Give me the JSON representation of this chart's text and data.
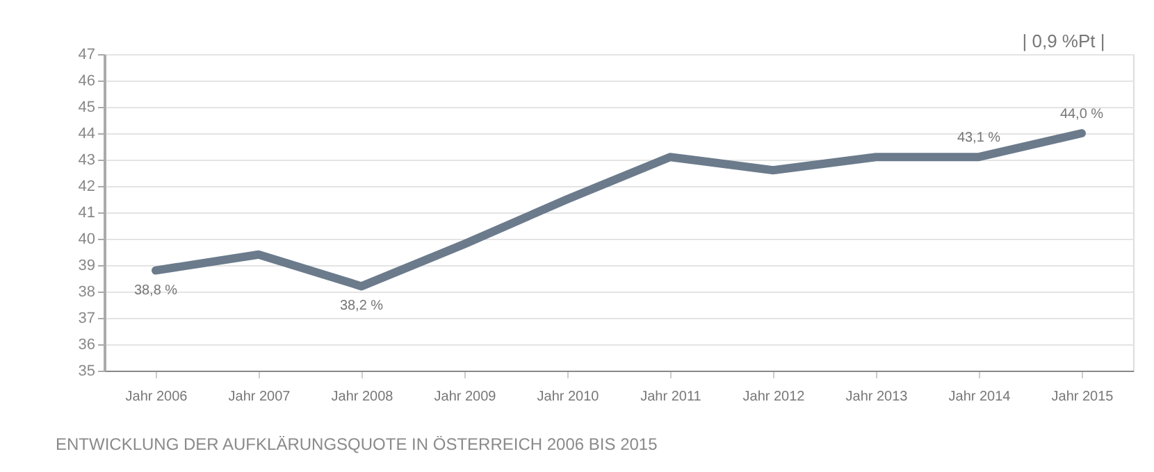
{
  "chart_data": {
    "type": "line",
    "categories": [
      "Jahr 2006",
      "Jahr 2007",
      "Jahr 2008",
      "Jahr 2009",
      "Jahr 2010",
      "Jahr 2011",
      "Jahr 2012",
      "Jahr 2013",
      "Jahr 2014",
      "Jahr 2015"
    ],
    "series": [
      {
        "color": "#6b7b8c",
        "values": [
          38.8,
          39.4,
          38.2,
          39.8,
          41.5,
          43.1,
          42.6,
          43.1,
          43.1,
          44.0
        ],
        "value_labels": [
          "38,8 %",
          null,
          "38,2 %",
          null,
          null,
          null,
          null,
          null,
          "43,1 %",
          "44,0 %"
        ]
      }
    ],
    "ylim": [
      35,
      47
    ],
    "yticks": [
      35,
      36,
      37,
      38,
      39,
      40,
      41,
      42,
      43,
      44,
      45,
      46,
      47
    ],
    "grid": "y",
    "marker": "none",
    "line_style": "solid",
    "annotations": [
      "| 0,9  %Pt |",
      "ENTWICKLUNG DER AUFKLÄRUNGSQUOTE IN ÖSTERREICH 2006 BIS 2015"
    ]
  }
}
